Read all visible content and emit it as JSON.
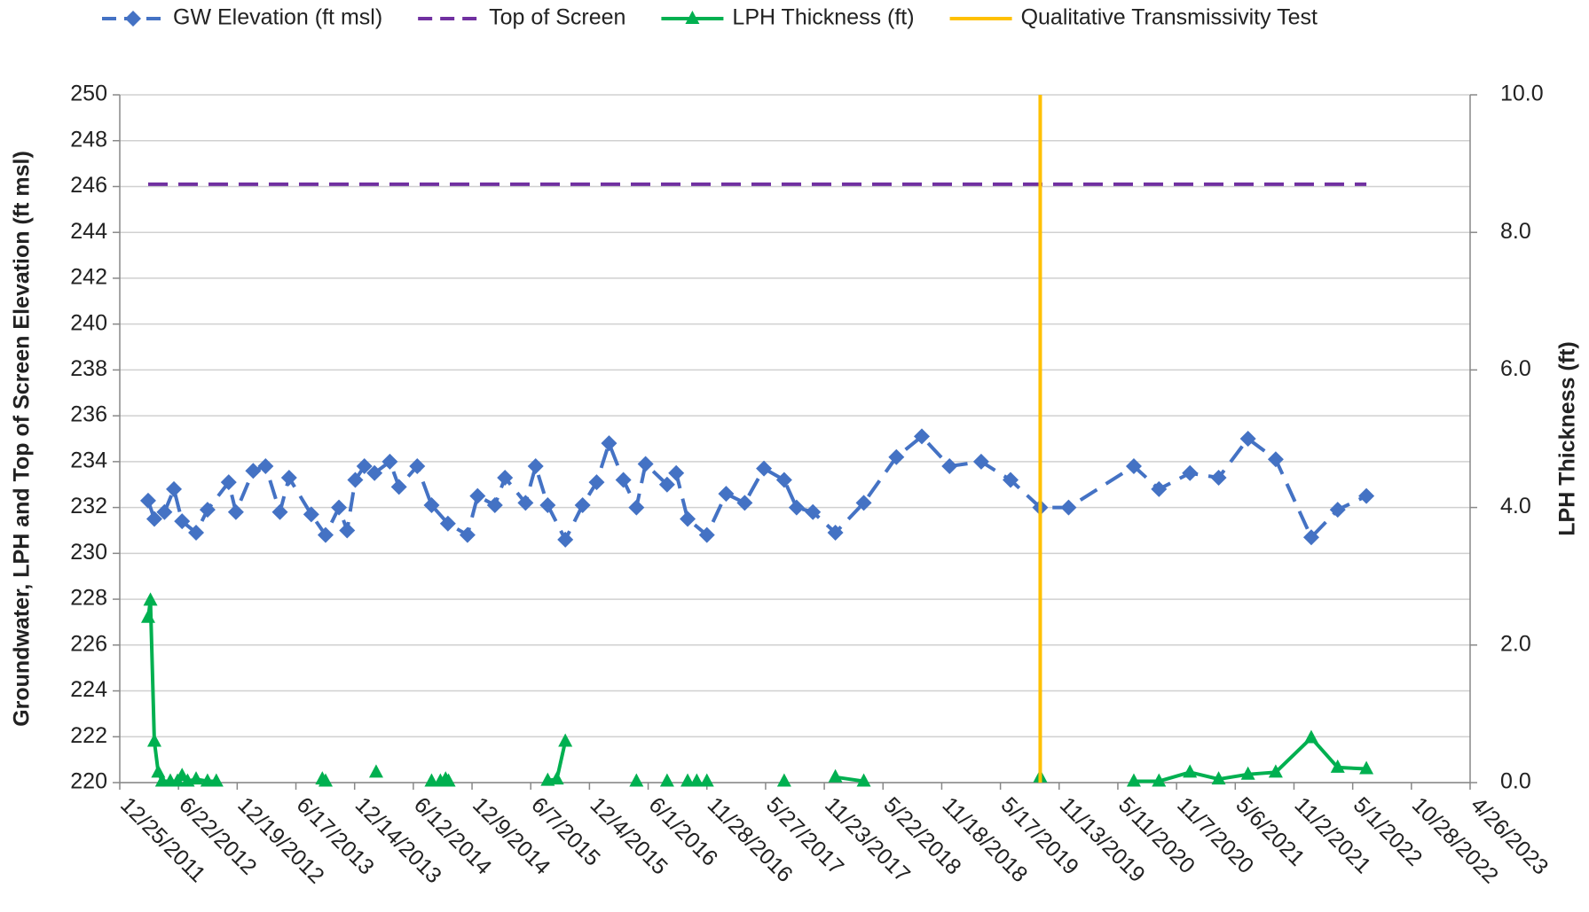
{
  "chart_data": {
    "type": "line",
    "y_label": "Groundwater, LPH and Top of Screen Elevation (ft msl)",
    "y2_label": "LPH Thickness (ft)",
    "xlim": [
      "2011-12-25",
      "2023-04-26"
    ],
    "xticks": [
      {
        "value": "2011-12-25",
        "label": "12/25/2011"
      },
      {
        "value": "2012-06-22",
        "label": "6/22/2012"
      },
      {
        "value": "2012-12-19",
        "label": "12/19/2012"
      },
      {
        "value": "2013-06-17",
        "label": "6/17/2013"
      },
      {
        "value": "2013-12-14",
        "label": "12/14/2013"
      },
      {
        "value": "2014-06-12",
        "label": "6/12/2014"
      },
      {
        "value": "2014-12-09",
        "label": "12/9/2014"
      },
      {
        "value": "2015-06-07",
        "label": "6/7/2015"
      },
      {
        "value": "2015-12-04",
        "label": "12/4/2015"
      },
      {
        "value": "2016-06-01",
        "label": "6/1/2016"
      },
      {
        "value": "2016-11-28",
        "label": "11/28/2016"
      },
      {
        "value": "2017-05-27",
        "label": "5/27/2017"
      },
      {
        "value": "2017-11-23",
        "label": "11/23/2017"
      },
      {
        "value": "2018-05-22",
        "label": "5/22/2018"
      },
      {
        "value": "2018-11-18",
        "label": "11/18/2018"
      },
      {
        "value": "2019-05-17",
        "label": "5/17/2019"
      },
      {
        "value": "2019-11-13",
        "label": "11/13/2019"
      },
      {
        "value": "2020-05-11",
        "label": "5/11/2020"
      },
      {
        "value": "2020-11-07",
        "label": "11/7/2020"
      },
      {
        "value": "2021-05-06",
        "label": "5/6/2021"
      },
      {
        "value": "2021-11-02",
        "label": "11/2/2021"
      },
      {
        "value": "2022-05-01",
        "label": "5/1/2022"
      },
      {
        "value": "2022-10-28",
        "label": "10/28/2022"
      },
      {
        "value": "2023-04-26",
        "label": "4/26/2023"
      }
    ],
    "ylim": [
      220,
      250
    ],
    "yticks": [
      220,
      222,
      224,
      226,
      228,
      230,
      232,
      234,
      236,
      238,
      240,
      242,
      244,
      246,
      248,
      250
    ],
    "y2lim": [
      0,
      10
    ],
    "y2ticks": [
      {
        "value": 0,
        "label": "0.0"
      },
      {
        "value": 2,
        "label": "2.0"
      },
      {
        "value": 4,
        "label": "4.0"
      },
      {
        "value": 6,
        "label": "6.0"
      },
      {
        "value": 8,
        "label": "8.0"
      },
      {
        "value": 10,
        "label": "10.0"
      }
    ],
    "grid": true,
    "legend": "top",
    "series": [
      {
        "name": "GW Elevation (ft msl)",
        "color": "#4472c4",
        "line_style": "dashed",
        "marker": "diamond",
        "x": [
          "2012-03-21",
          "2012-04-09",
          "2012-05-10",
          "2012-06-08",
          "2012-07-03",
          "2012-08-15",
          "2012-09-19",
          "2012-11-23",
          "2012-12-15",
          "2013-02-06",
          "2013-03-16",
          "2013-04-29",
          "2013-05-27",
          "2013-08-03",
          "2013-09-16",
          "2013-10-27",
          "2013-11-21",
          "2013-12-16",
          "2014-01-13",
          "2014-02-13",
          "2014-04-01",
          "2014-04-29",
          "2014-06-24",
          "2014-08-07",
          "2014-09-26",
          "2014-11-25",
          "2014-12-26",
          "2015-02-17",
          "2015-03-20",
          "2015-05-22",
          "2015-06-22",
          "2015-07-29",
          "2015-09-21",
          "2015-11-13",
          "2015-12-26",
          "2016-02-02",
          "2016-03-17",
          "2016-04-26",
          "2016-05-24",
          "2016-07-29",
          "2016-08-26",
          "2016-09-30",
          "2016-11-28",
          "2017-01-26",
          "2017-03-24",
          "2017-05-22",
          "2017-07-23",
          "2017-08-30",
          "2017-10-19",
          "2017-12-27",
          "2018-03-24",
          "2018-07-02",
          "2018-09-18",
          "2018-12-12",
          "2019-03-19",
          "2019-06-17",
          "2019-09-16",
          "2019-12-12",
          "2020-06-29",
          "2020-09-14",
          "2020-12-18",
          "2021-03-16",
          "2021-06-14",
          "2021-09-07",
          "2021-12-25",
          "2022-03-16",
          "2022-06-12"
        ],
        "values": [
          232.3,
          231.5,
          231.8,
          232.8,
          231.4,
          230.9,
          231.9,
          233.1,
          231.8,
          233.6,
          233.8,
          231.8,
          233.3,
          231.7,
          230.8,
          232.0,
          231.0,
          233.2,
          233.8,
          233.5,
          234.0,
          232.9,
          233.8,
          232.1,
          231.3,
          230.8,
          232.5,
          232.1,
          233.3,
          232.2,
          233.8,
          232.1,
          230.6,
          232.1,
          233.1,
          234.8,
          233.2,
          232.0,
          233.9,
          233.0,
          233.5,
          231.5,
          230.8,
          232.6,
          232.2,
          233.7,
          233.2,
          232.0,
          231.8,
          230.9,
          232.2,
          234.2,
          235.1,
          233.8,
          234.0,
          233.2,
          232.0,
          232.0,
          233.8,
          232.8,
          233.5,
          233.3,
          235.0,
          234.1,
          230.7,
          231.9,
          232.5
        ]
      },
      {
        "name": "Top of Screen",
        "color": "#7030a0",
        "line_style": "dashed",
        "marker": "none",
        "x": [
          "2012-03-21",
          "2022-06-12"
        ],
        "values": [
          246.1,
          246.1
        ]
      },
      {
        "name": "LPH Thickness (ft)",
        "color": "#00b050",
        "line_style": "solid",
        "marker": "triangle",
        "axis": "y2",
        "x": [
          "2012-03-21",
          "2012-03-28",
          "2012-04-09",
          "2012-04-21",
          "2012-05-03",
          "2012-05-28",
          "2012-06-19",
          "2012-07-03",
          "2012-07-20",
          "2012-08-15",
          "2012-09-19",
          "2012-10-16",
          null,
          "2013-09-06",
          null,
          "2013-09-16",
          null,
          "2014-02-18",
          null,
          "2014-08-07",
          null,
          "2014-09-03",
          null,
          "2014-09-19",
          null,
          "2014-09-28",
          null,
          "2015-07-29",
          "2015-08-26",
          "2015-09-21",
          null,
          "2016-04-26",
          null,
          "2016-07-29",
          null,
          "2016-09-30",
          null,
          "2016-10-28",
          null,
          "2016-11-28",
          null,
          "2017-07-23",
          null,
          "2017-12-27",
          "2018-03-24",
          null,
          "2019-09-16",
          null,
          "2020-06-29",
          "2020-09-14",
          "2020-12-18",
          "2021-03-16",
          "2021-06-14",
          "2021-09-07",
          "2021-12-25",
          "2022-03-16",
          "2022-06-12"
        ],
        "values": [
          2.4,
          2.65,
          0.6,
          0.15,
          0.02,
          0.02,
          0.02,
          0.1,
          0.02,
          0.05,
          0.02,
          0.02,
          null,
          0.05,
          null,
          0.02,
          null,
          0.15,
          null,
          0.02,
          null,
          0.02,
          null,
          0.05,
          null,
          0.02,
          null,
          0.03,
          0.05,
          0.6,
          null,
          0.02,
          null,
          0.02,
          null,
          0.02,
          null,
          0.02,
          null,
          0.02,
          null,
          0.02,
          null,
          0.08,
          0.02,
          null,
          0.08,
          null,
          0.02,
          0.02,
          0.15,
          0.05,
          0.12,
          0.15,
          0.65,
          0.22,
          0.2
        ]
      },
      {
        "name": "Qualitative Transmissivity Test",
        "color": "#ffc000",
        "line_style": "solid",
        "marker": "none",
        "x": [
          "2019-09-16",
          "2019-09-16"
        ],
        "values": [
          220,
          250
        ]
      }
    ]
  }
}
